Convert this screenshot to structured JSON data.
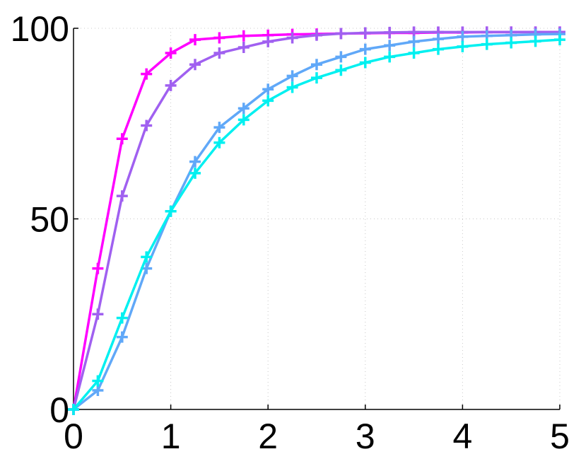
{
  "chart_data": {
    "type": "line",
    "title": "",
    "xlabel": "",
    "ylabel": "",
    "xlim": [
      0,
      5
    ],
    "ylim": [
      0,
      100
    ],
    "xticks": [
      "0",
      "1",
      "2",
      "3",
      "4",
      "5"
    ],
    "yticks": [
      "0",
      "50",
      "100"
    ],
    "grid": true,
    "marker": "+",
    "x": [
      0,
      0.25,
      0.5,
      0.75,
      1.0,
      1.25,
      1.5,
      1.75,
      2.0,
      2.25,
      2.5,
      2.75,
      3.0,
      3.25,
      3.5,
      3.75,
      4.0,
      4.25,
      4.5,
      4.75,
      5.0
    ],
    "series": [
      {
        "color": "#ff00ff",
        "values": [
          0,
          37,
          71,
          88,
          93.5,
          97,
          97.5,
          98,
          98.2,
          98.4,
          98.5,
          98.6,
          98.7,
          98.8,
          98.8,
          98.9,
          98.9,
          99,
          99,
          99,
          99
        ]
      },
      {
        "color": "#a060f0",
        "values": [
          0,
          25,
          56,
          74.5,
          85,
          90.5,
          93.5,
          95,
          96.5,
          97.5,
          98.2,
          98.6,
          98.8,
          98.9,
          99,
          99,
          99,
          99,
          99,
          99,
          99
        ]
      },
      {
        "color": "#60a8f8",
        "values": [
          0,
          5,
          19,
          37,
          52,
          65,
          74,
          79,
          84,
          87.5,
          90.5,
          92.5,
          94.5,
          95.5,
          96.5,
          97.2,
          97.8,
          98,
          98.2,
          98.4,
          98.5
        ]
      },
      {
        "color": "#00f0f0",
        "values": [
          0,
          7.5,
          24,
          40,
          52,
          62,
          70,
          76,
          81,
          84.5,
          87,
          89,
          91,
          92.5,
          93.5,
          94.5,
          95.2,
          95.8,
          96.2,
          96.6,
          97
        ]
      }
    ]
  }
}
